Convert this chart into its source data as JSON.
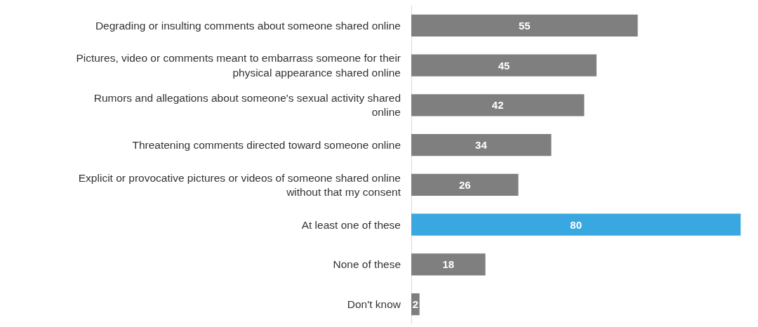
{
  "chart_data": {
    "type": "bar",
    "orientation": "horizontal",
    "data_labels": true,
    "grid": false,
    "legend": false,
    "categories": [
      "Degrading or insulting comments about someone shared online",
      "Pictures, video or comments meant to embarrass someone for their physical appearance shared online",
      "Rumors and allegations about someone's sexual activity shared online",
      "Threatening comments directed toward someone online",
      "Explicit or provocative pictures or videos of someone shared online without that my consent",
      "At least one of these",
      "None of these",
      "Don't know"
    ],
    "values": [
      55,
      45,
      42,
      34,
      26,
      80,
      18,
      2
    ],
    "colors": [
      "#7f7f7f",
      "#7f7f7f",
      "#7f7f7f",
      "#7f7f7f",
      "#7f7f7f",
      "#3aa8e0",
      "#7f7f7f",
      "#7f7f7f"
    ]
  }
}
